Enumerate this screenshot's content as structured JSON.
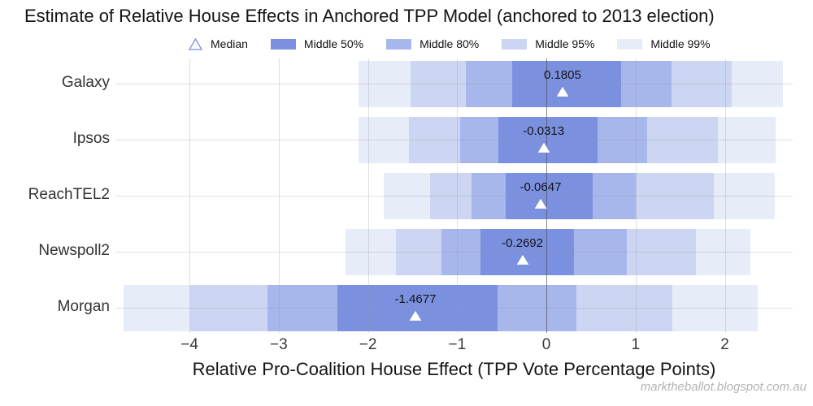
{
  "title": "Estimate of Relative House Effects in Anchored TPP Model (anchored to 2013 election)",
  "watermark": "marktheballot.blogspot.com.au",
  "legend": {
    "median_label": "Median",
    "items": [
      {
        "key": "middle_50",
        "label": "Middle 50%"
      },
      {
        "key": "middle_80",
        "label": "Middle 80%"
      },
      {
        "key": "middle_95",
        "label": "Middle 95%"
      },
      {
        "key": "middle_99",
        "label": "Middle 99%"
      }
    ]
  },
  "chart_data": {
    "type": "interval",
    "orientation": "horizontal",
    "title": "Estimate of Relative House Effects in Anchored TPP Model (anchored to 2013 election)",
    "xlabel": "Relative Pro-Coalition House Effect (TPP Vote Percentage Points)",
    "ylabel": "",
    "grid": true,
    "legend_position": "top",
    "x_domain": [
      -4.83,
      2.76
    ],
    "x_ticks": [
      {
        "value": -4,
        "label": "−4"
      },
      {
        "value": -3,
        "label": "−3"
      },
      {
        "value": -2,
        "label": "−2"
      },
      {
        "value": -1,
        "label": "−1"
      },
      {
        "value": 0,
        "label": "0"
      },
      {
        "value": 1,
        "label": "1"
      },
      {
        "value": 2,
        "label": "2"
      }
    ],
    "zero_line": 0,
    "categories": [
      "Galaxy",
      "Ipsos",
      "ReachTEL2",
      "Newspoll2",
      "Morgan"
    ],
    "rows": [
      {
        "name": "Galaxy",
        "median": 0.1805,
        "median_label": "0.1805",
        "middle_50": [
          -0.38,
          0.84
        ],
        "middle_80": [
          -0.9,
          1.4
        ],
        "middle_95": [
          -1.52,
          2.08
        ],
        "middle_99": [
          -2.11,
          2.65
        ]
      },
      {
        "name": "Ipsos",
        "median": -0.0313,
        "median_label": "-0.0313",
        "middle_50": [
          -0.54,
          0.57
        ],
        "middle_80": [
          -0.97,
          1.13
        ],
        "middle_95": [
          -1.54,
          1.92
        ],
        "middle_99": [
          -2.11,
          2.57
        ]
      },
      {
        "name": "ReachTEL2",
        "median": -0.0647,
        "median_label": "-0.0647",
        "middle_50": [
          -0.46,
          0.52
        ],
        "middle_80": [
          -0.84,
          1.0
        ],
        "middle_95": [
          -1.3,
          1.88
        ],
        "middle_99": [
          -1.82,
          2.56
        ]
      },
      {
        "name": "Newspoll2",
        "median": -0.2692,
        "median_label": "-0.2692",
        "middle_50": [
          -0.74,
          0.31
        ],
        "middle_80": [
          -1.18,
          0.9
        ],
        "middle_95": [
          -1.69,
          1.68
        ],
        "middle_99": [
          -2.25,
          2.29
        ]
      },
      {
        "name": "Morgan",
        "median": -1.4677,
        "median_label": "-1.4677",
        "middle_50": [
          -2.34,
          -0.55
        ],
        "middle_80": [
          -3.13,
          0.34
        ],
        "middle_95": [
          -3.99,
          1.41
        ],
        "middle_99": [
          -4.74,
          2.37
        ]
      }
    ],
    "colors": {
      "middle_50": "#7b91e0",
      "middle_80": "#a7b7ec",
      "middle_95": "#ccd6f3",
      "middle_99": "#e7ecf9",
      "median_marker_fill": "#ffffff",
      "median_marker_stroke": "#7a90d8",
      "zero_line": "#5e5e66",
      "grid": "#e2e2e8"
    }
  }
}
